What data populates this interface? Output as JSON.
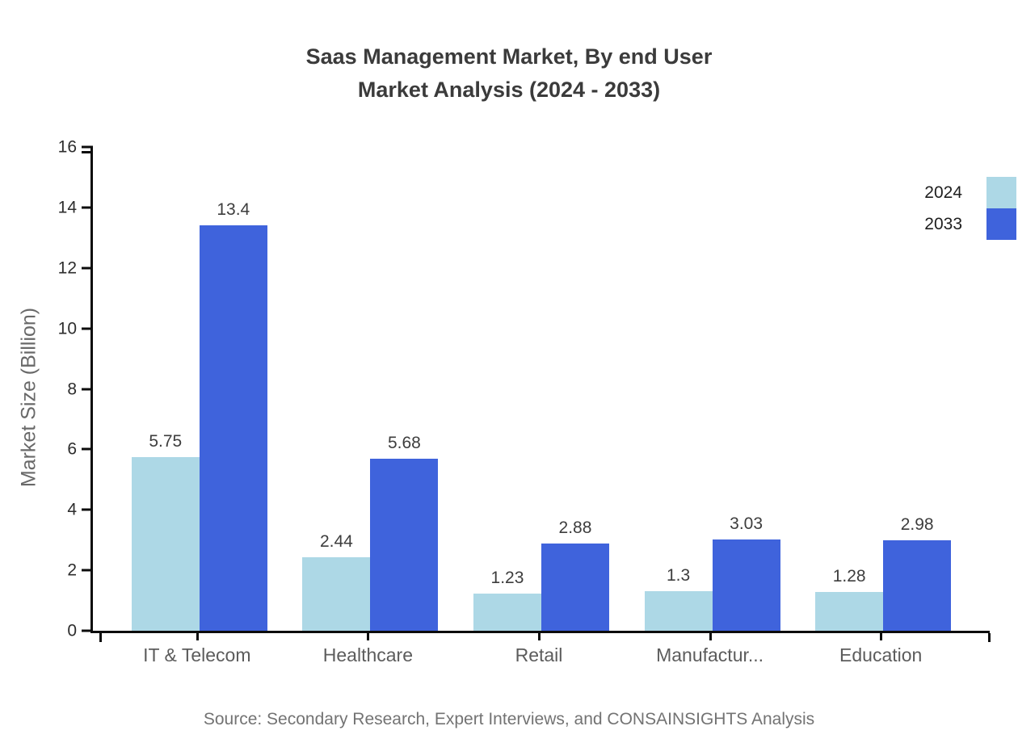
{
  "chart_data": {
    "type": "bar",
    "title_line1": "Saas Management Market, By end User",
    "title_line2": "Market Analysis (2024 - 2033)",
    "ylabel": "Market Size (Billion)",
    "categories": [
      "IT & Telecom",
      "Healthcare",
      "Retail",
      "Manufactur...",
      "Education"
    ],
    "series": [
      {
        "name": "2024",
        "color": "#ADD8E6",
        "values": [
          5.75,
          2.44,
          1.23,
          1.3,
          1.28
        ]
      },
      {
        "name": "2033",
        "color": "#3F63DC",
        "values": [
          13.4,
          5.68,
          2.88,
          3.03,
          2.98
        ]
      }
    ],
    "ylim": [
      0,
      16
    ],
    "yticks": [
      0,
      2,
      4,
      6,
      8,
      10,
      12,
      14,
      16
    ],
    "grid": false,
    "legend_position": "top-right",
    "axis_color": "#0c0c0c"
  },
  "source_note": "Source: Secondary Research, Expert Interviews, and CONSAINSIGHTS Analysis"
}
